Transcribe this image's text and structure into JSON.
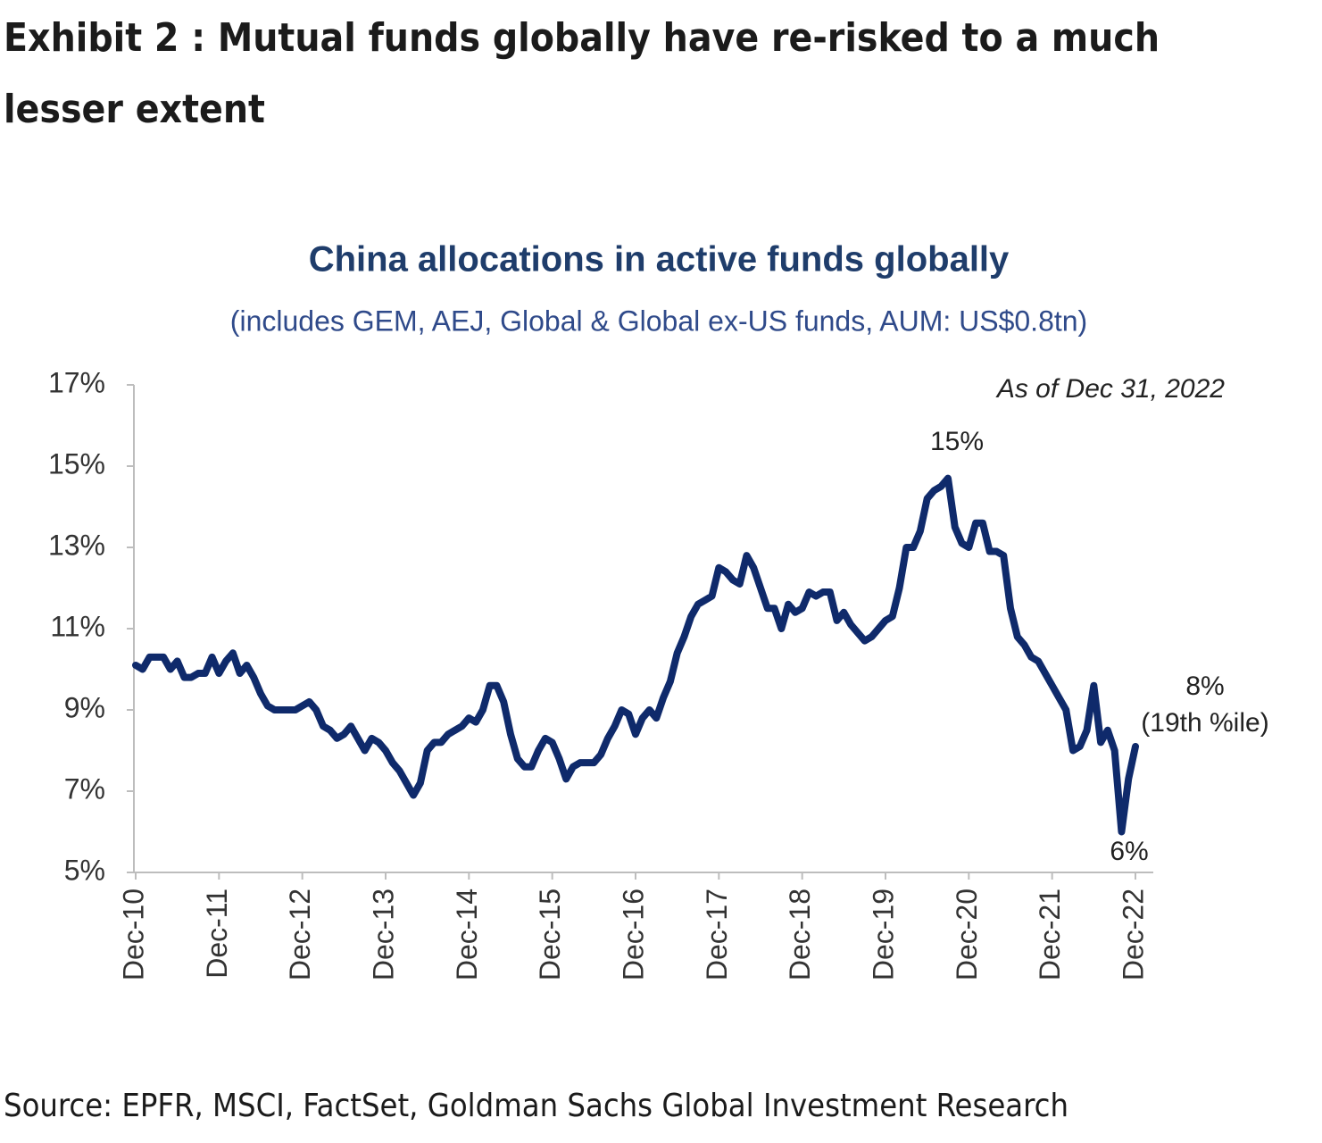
{
  "chart_data": {
    "type": "line",
    "heading": [
      "Exhibit 2 : Mutual funds globally have re-risked to a much",
      "lesser extent"
    ],
    "title": "China allocations in active funds globally",
    "subtitle": "(includes GEM,  AEJ,  Global &  Global ex-US  funds, AUM:  US$0.8tn)",
    "source": "Source: EPFR, MSCI, FactSet, Goldman Sachs Global Investment Research",
    "annotations": [
      "As of Dec 31, 2022",
      "15%",
      "6%",
      "8%",
      "(19th %ile)"
    ],
    "categories": [
      "Dec-10",
      null,
      null,
      null,
      null,
      null,
      null,
      null,
      null,
      null,
      null,
      null,
      "Dec-11",
      null,
      null,
      null,
      null,
      null,
      null,
      null,
      null,
      null,
      null,
      null,
      "Dec-12",
      null,
      null,
      null,
      null,
      null,
      null,
      null,
      null,
      null,
      null,
      null,
      "Dec-13",
      null,
      null,
      null,
      null,
      null,
      null,
      null,
      null,
      null,
      null,
      null,
      "Dec-14",
      null,
      null,
      null,
      null,
      null,
      null,
      null,
      null,
      null,
      null,
      null,
      "Dec-15",
      null,
      null,
      null,
      null,
      null,
      null,
      null,
      null,
      null,
      null,
      null,
      "Dec-16",
      null,
      null,
      null,
      null,
      null,
      null,
      null,
      null,
      null,
      null,
      null,
      "Dec-17",
      null,
      null,
      null,
      null,
      null,
      null,
      null,
      null,
      null,
      null,
      null,
      "Dec-18",
      null,
      null,
      null,
      null,
      null,
      null,
      null,
      null,
      null,
      null,
      null,
      "Dec-19",
      null,
      null,
      null,
      null,
      null,
      null,
      null,
      null,
      null,
      null,
      null,
      "Dec-20",
      null,
      null,
      null,
      null,
      null,
      null,
      null,
      null,
      null,
      null,
      null,
      "Dec-21",
      null,
      null,
      null,
      null,
      null,
      null,
      null,
      null,
      null,
      null,
      null,
      "Dec-22"
    ],
    "values": [
      10.1,
      10.0,
      10.3,
      10.3,
      10.3,
      10.0,
      10.2,
      9.8,
      9.8,
      9.9,
      9.9,
      10.3,
      9.9,
      10.2,
      10.4,
      9.9,
      10.1,
      9.8,
      9.4,
      9.1,
      9.0,
      9.0,
      9.0,
      9.0,
      9.1,
      9.2,
      9.0,
      8.6,
      8.5,
      8.3,
      8.4,
      8.6,
      8.3,
      8.0,
      8.3,
      8.2,
      8.0,
      7.7,
      7.5,
      7.2,
      6.9,
      7.2,
      8.0,
      8.2,
      8.2,
      8.4,
      8.5,
      8.6,
      8.8,
      8.7,
      9.0,
      9.6,
      9.6,
      9.2,
      8.4,
      7.8,
      7.6,
      7.6,
      8.0,
      8.3,
      8.2,
      7.8,
      7.3,
      7.6,
      7.7,
      7.7,
      7.7,
      7.9,
      8.3,
      8.6,
      9.0,
      8.9,
      8.4,
      8.8,
      9.0,
      8.8,
      9.3,
      9.7,
      10.4,
      10.8,
      11.3,
      11.6,
      11.7,
      11.8,
      12.5,
      12.4,
      12.2,
      12.1,
      12.8,
      12.5,
      12.0,
      11.5,
      11.5,
      11.0,
      11.6,
      11.4,
      11.5,
      11.9,
      11.8,
      11.9,
      11.9,
      11.2,
      11.4,
      11.1,
      10.9,
      10.7,
      10.8,
      11.0,
      11.2,
      11.3,
      12.0,
      13.0,
      13.0,
      13.4,
      14.2,
      14.4,
      14.5,
      14.7,
      13.5,
      13.1,
      13.0,
      13.6,
      13.6,
      12.9,
      12.9,
      12.8,
      11.5,
      10.8,
      10.6,
      10.3,
      10.2,
      9.9,
      9.6,
      9.3,
      9.0,
      8.0,
      8.1,
      8.5,
      9.6,
      8.2,
      8.5,
      8.0,
      6.0,
      7.3,
      8.1
    ],
    "color": "#0f2a6b",
    "ylim": [
      5,
      17
    ],
    "yticks": [
      {
        "value": 5,
        "label": "5%"
      },
      {
        "value": 7,
        "label": "7%"
      },
      {
        "value": 9,
        "label": "9%"
      },
      {
        "value": 11,
        "label": "11%"
      },
      {
        "value": 13,
        "label": "13%"
      },
      {
        "value": 15,
        "label": "15%"
      },
      {
        "value": 17,
        "label": "17%"
      }
    ],
    "grid": false
  }
}
